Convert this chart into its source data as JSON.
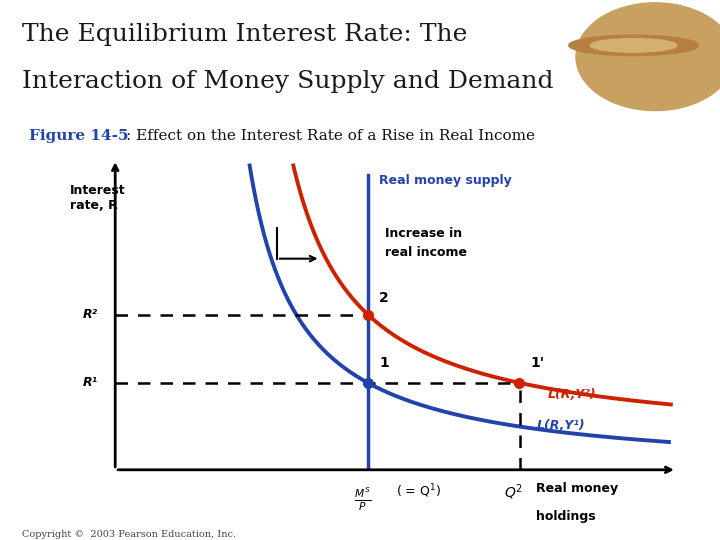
{
  "title_line1": "The Equilibrium Interest Rate: The",
  "title_line2": "Interaction of Money Supply and Demand",
  "subtitle_bold": "Figure 14-5",
  "subtitle_rest": ": Effect on the Interest Rate of a Rise in Real Income",
  "title_bg_color": "#f0e8d8",
  "title_text_color": "#1a1a1a",
  "subtitle_color": "#2244aa",
  "bg_color": "#ffffff",
  "ylabel": "Interest\nrate, R",
  "supply_label": "Real money supply",
  "supply_color": "#2244aa",
  "demand1_color": "#2244aa",
  "demand2_color": "#cc2200",
  "label_L2": "L(R,Y²)",
  "label_L1": "L(R,Y¹)",
  "label_R1": "R¹",
  "label_R2": "R²",
  "label_1": "1",
  "label_2": "2",
  "label_1prime": "1'",
  "arrow_label_line1": "Increase in",
  "arrow_label_line2": "real income",
  "gold_bar_color": "#c8a800",
  "copyright": "Copyright ©  2003 Pearson Education, Inc.",
  "title_fontsize": 18,
  "subtitle_fontsize": 11
}
